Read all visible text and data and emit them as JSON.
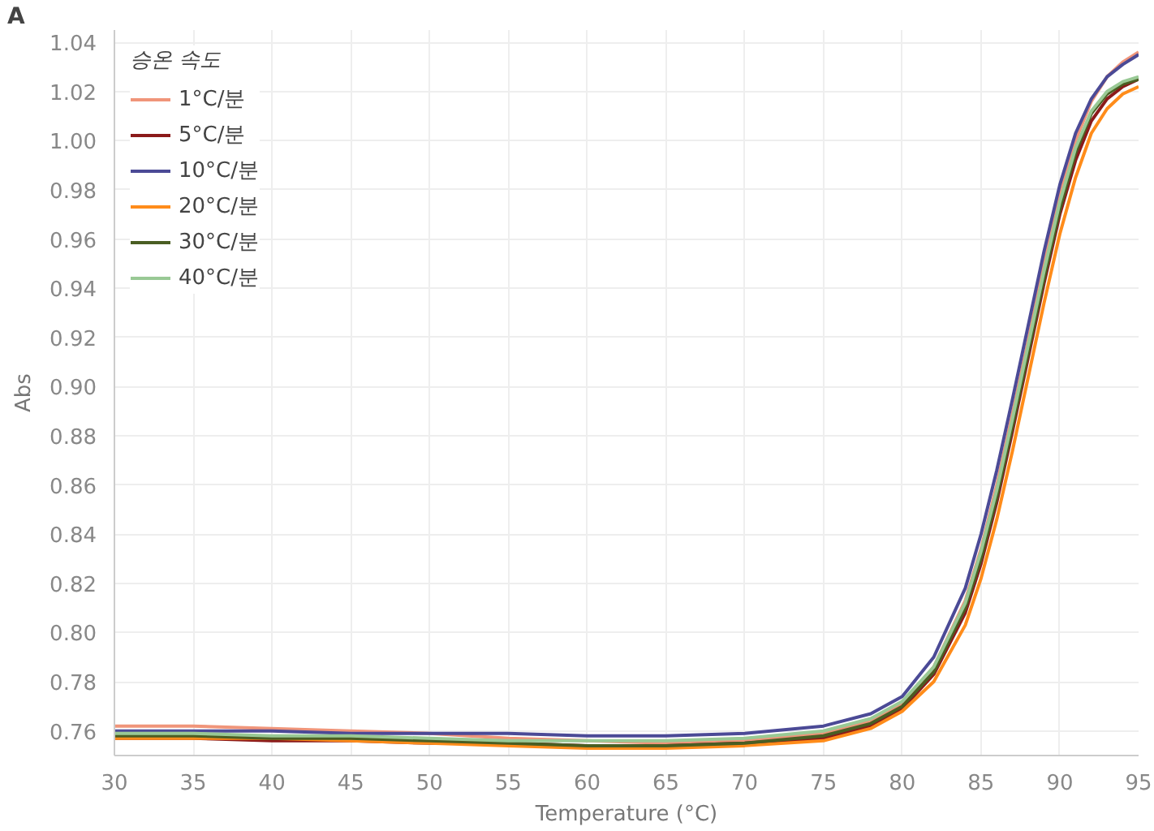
{
  "chart_data": {
    "type": "line",
    "annotations": [
      "A"
    ],
    "xlabel": "Temperature (°C)",
    "ylabel": "Abs",
    "legend_title": "승온 속도",
    "x": [
      30,
      35,
      40,
      45,
      50,
      55,
      60,
      65,
      70,
      75,
      78,
      80,
      82,
      84,
      85,
      86,
      87,
      88,
      89,
      90,
      91,
      92,
      93,
      94,
      95
    ],
    "series": [
      {
        "name": "1°C/분",
        "color": "#f0957a",
        "values": [
          0.762,
          0.762,
          0.761,
          0.76,
          0.759,
          0.757,
          0.756,
          0.755,
          0.756,
          0.759,
          0.764,
          0.771,
          0.786,
          0.813,
          0.834,
          0.86,
          0.889,
          0.919,
          0.95,
          0.978,
          1.0,
          1.016,
          1.026,
          1.032,
          1.036
        ]
      },
      {
        "name": "5°C/분",
        "color": "#8b1a1a",
        "values": [
          0.757,
          0.757,
          0.756,
          0.756,
          0.755,
          0.755,
          0.754,
          0.754,
          0.755,
          0.757,
          0.762,
          0.769,
          0.783,
          0.808,
          0.828,
          0.853,
          0.882,
          0.912,
          0.942,
          0.97,
          0.992,
          1.008,
          1.017,
          1.022,
          1.025
        ]
      },
      {
        "name": "10°C/분",
        "color": "#4b4a96",
        "values": [
          0.76,
          0.76,
          0.76,
          0.759,
          0.759,
          0.759,
          0.758,
          0.758,
          0.759,
          0.762,
          0.767,
          0.774,
          0.79,
          0.818,
          0.84,
          0.866,
          0.895,
          0.925,
          0.955,
          0.982,
          1.003,
          1.017,
          1.026,
          1.031,
          1.035
        ]
      },
      {
        "name": "20°C/분",
        "color": "#ff8c1a",
        "values": [
          0.757,
          0.757,
          0.757,
          0.756,
          0.755,
          0.754,
          0.753,
          0.753,
          0.754,
          0.756,
          0.761,
          0.768,
          0.78,
          0.803,
          0.822,
          0.846,
          0.874,
          0.904,
          0.934,
          0.962,
          0.985,
          1.003,
          1.013,
          1.019,
          1.022
        ]
      },
      {
        "name": "30°C/분",
        "color": "#4a5e23",
        "values": [
          0.758,
          0.758,
          0.757,
          0.757,
          0.756,
          0.755,
          0.754,
          0.754,
          0.755,
          0.758,
          0.763,
          0.77,
          0.784,
          0.81,
          0.83,
          0.855,
          0.884,
          0.914,
          0.944,
          0.972,
          0.995,
          1.011,
          1.019,
          1.023,
          1.025
        ]
      },
      {
        "name": "40°C/분",
        "color": "#99c995",
        "values": [
          0.759,
          0.759,
          0.758,
          0.758,
          0.757,
          0.756,
          0.756,
          0.756,
          0.757,
          0.76,
          0.765,
          0.772,
          0.786,
          0.812,
          0.833,
          0.858,
          0.887,
          0.917,
          0.947,
          0.975,
          0.997,
          1.012,
          1.02,
          1.024,
          1.026
        ]
      }
    ],
    "xlim": [
      30,
      95
    ],
    "ylim": [
      0.75,
      1.045
    ],
    "xticks": [
      30,
      35,
      40,
      45,
      50,
      55,
      60,
      65,
      70,
      75,
      80,
      85,
      90,
      95
    ],
    "yticks": [
      {
        "value": 0.76,
        "label": "0.76"
      },
      {
        "value": 0.78,
        "label": "0.78"
      },
      {
        "value": 0.8,
        "label": "0.80"
      },
      {
        "value": 0.82,
        "label": "0.82"
      },
      {
        "value": 0.84,
        "label": "0.84"
      },
      {
        "value": 0.86,
        "label": "0.86"
      },
      {
        "value": 0.88,
        "label": "0.88"
      },
      {
        "value": 0.9,
        "label": "0.90"
      },
      {
        "value": 0.92,
        "label": "0.92"
      },
      {
        "value": 0.94,
        "label": "0.94"
      },
      {
        "value": 0.96,
        "label": "0.96"
      },
      {
        "value": 0.98,
        "label": "0.98"
      },
      {
        "value": 1.0,
        "label": "1.00"
      },
      {
        "value": 1.02,
        "label": "1.02"
      },
      {
        "value": 1.04,
        "label": "1.04"
      }
    ],
    "grid": true,
    "legend": "top left",
    "line_style": "solid",
    "marker": "none"
  }
}
